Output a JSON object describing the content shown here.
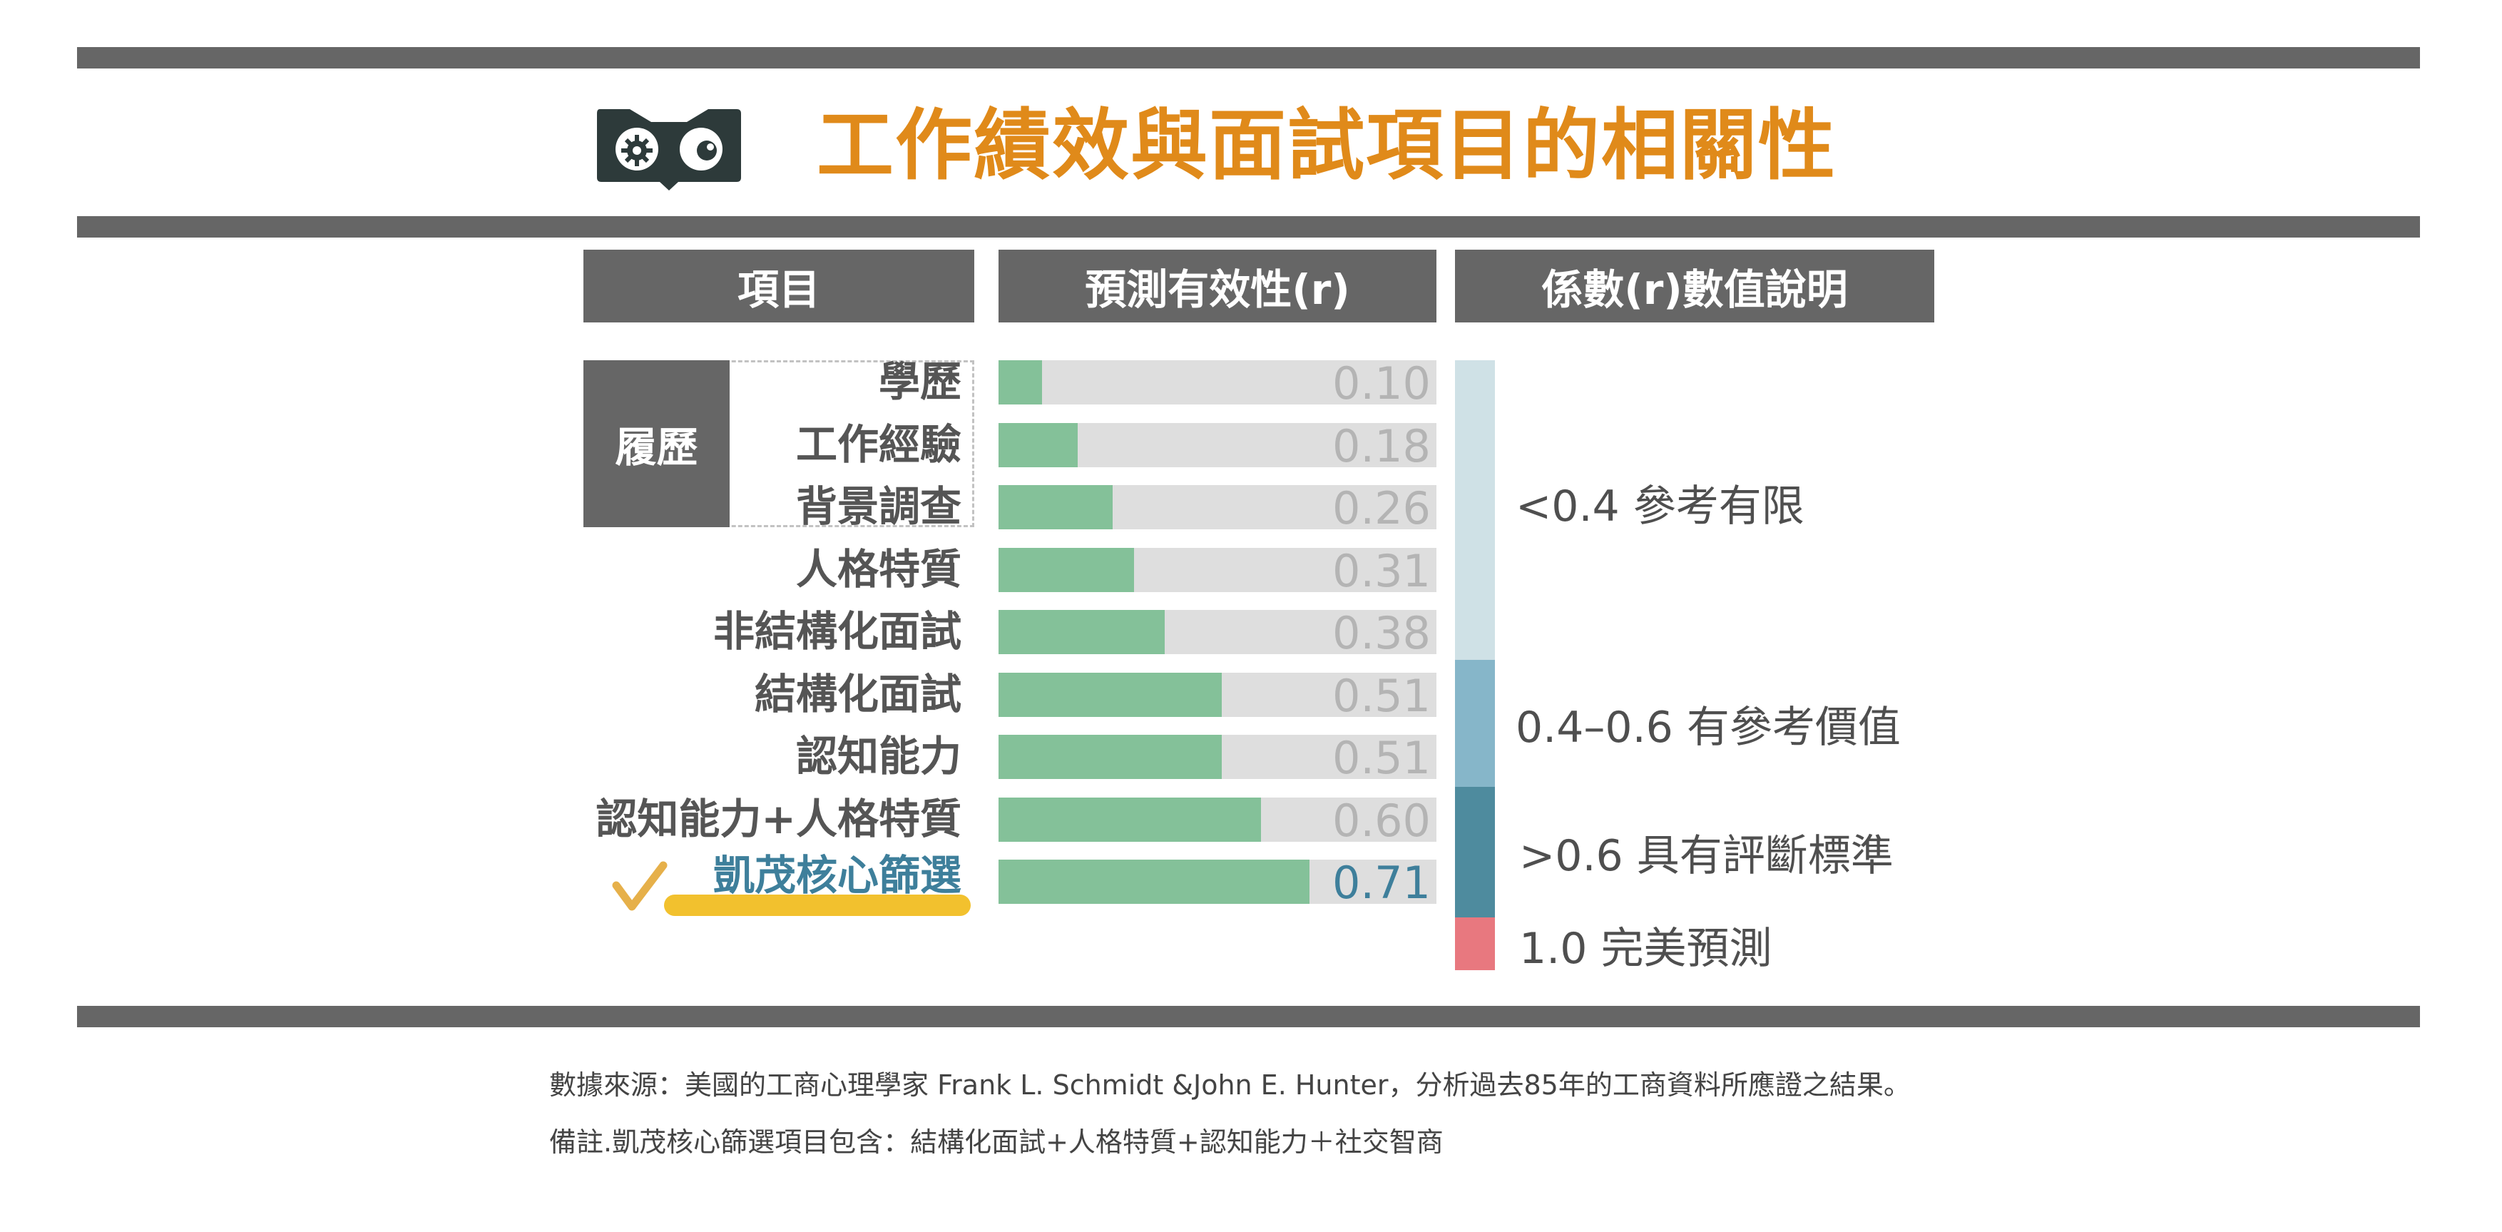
{
  "title": "工作績效與面試項目的相關性",
  "headers": {
    "item": "項目",
    "validity": "預測有效性(r)",
    "explanation": "係數(r)數值說明"
  },
  "group_label": "履歷",
  "colors": {
    "title": "#e08a1a",
    "header_bg": "#666666",
    "bar_fill": "#84c199",
    "bar_track": "#dedede",
    "highlight_text": "#3e7f9b",
    "highlight_underline": "#f2c12e",
    "scale_low": "#cfe1e6",
    "scale_mid": "#86b6c9",
    "scale_high": "#4e8b9e",
    "scale_perfect": "#e8787f"
  },
  "chart_data": {
    "type": "bar",
    "orientation": "horizontal",
    "xlim": [
      0,
      1.0
    ],
    "categories": [
      "學歷",
      "工作經驗",
      "背景調查",
      "人格特質",
      "非結構化面試",
      "結構化面試",
      "認知能力",
      "認知能力+人格特質",
      "凱茂核心篩選"
    ],
    "values": [
      0.1,
      0.18,
      0.26,
      0.31,
      0.38,
      0.51,
      0.51,
      0.6,
      0.71
    ],
    "value_labels": [
      "0.10",
      "0.18",
      "0.26",
      "0.31",
      "0.38",
      "0.51",
      "0.51",
      "0.60",
      "0.71"
    ],
    "highlighted_category": "凱茂核心篩選",
    "scale": [
      {
        "label": "<0.4 參考有限",
        "from": 0.0,
        "to": 0.4,
        "color": "#cfe1e6"
      },
      {
        "label": "0.4–0.6 有參考價值",
        "from": 0.4,
        "to": 0.6,
        "color": "#86b6c9"
      },
      {
        "label": ">0.6 具有評斷標準",
        "from": 0.6,
        "to": 0.99,
        "color": "#4e8b9e"
      },
      {
        "label": "1.0 完美預測",
        "from": 0.99,
        "to": 1.0,
        "color": "#e8787f"
      }
    ]
  },
  "footnotes": {
    "source": "數據來源：美國的工商心理學家 Frank L. Schmidt &John E. Hunter，分析過去85年的工商資料所應證之結果。",
    "note": "備註.凱茂核心篩選項目包含：結構化面試+人格特質+認知能力＋社交智商"
  }
}
